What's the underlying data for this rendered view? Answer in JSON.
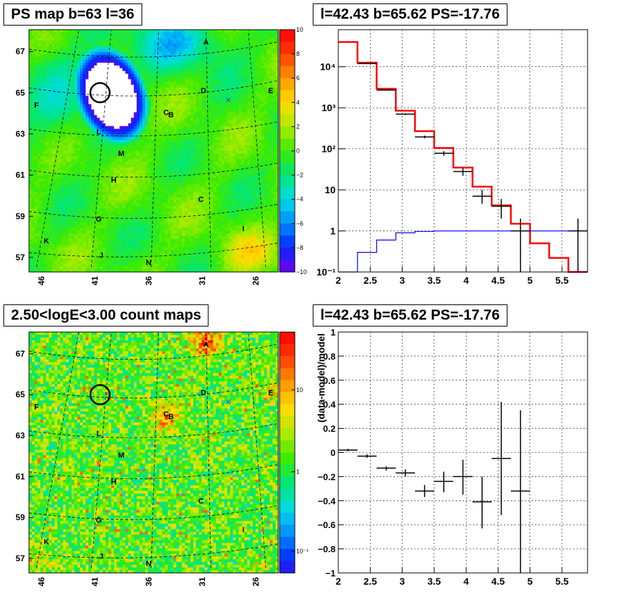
{
  "panels": {
    "ps_map": {
      "title": "PS map b=63 l=36",
      "y_ticks": [
        "57",
        "59",
        "61",
        "63",
        "65",
        "67"
      ],
      "x_ticks": [
        "46",
        "41",
        "36",
        "31",
        "26"
      ],
      "colorbar_ticks": [
        "10",
        "8",
        "6",
        "4",
        "2",
        "0",
        "−2",
        "−4",
        "−6",
        "−8",
        "−10"
      ],
      "sources": [
        "A",
        "B",
        "C",
        "D",
        "E",
        "F",
        "G",
        "H",
        "I",
        "J",
        "K",
        "L",
        "M",
        "N"
      ]
    },
    "spectrum": {
      "title": "l=42.43 b=65.62 PS=-17.76",
      "x_ticks": [
        "2",
        "2.5",
        "3",
        "3.5",
        "4",
        "4.5",
        "5",
        "5.5"
      ],
      "y_ticks": [
        "10⁻¹",
        "1",
        "10",
        "10²",
        "10³",
        "10⁴"
      ]
    },
    "count_map": {
      "title": "2.50<logE<3.00 count maps",
      "y_ticks": [
        "57",
        "59",
        "61",
        "63",
        "65",
        "67"
      ],
      "x_ticks": [
        "46",
        "41",
        "36",
        "31",
        "26"
      ],
      "colorbar_ticks": [
        "10",
        "1",
        "10⁻¹"
      ],
      "sources": [
        "A",
        "B",
        "C",
        "D",
        "E",
        "F",
        "G",
        "H",
        "I",
        "J",
        "K",
        "L",
        "M",
        "N"
      ]
    },
    "residual": {
      "title": "l=42.43 b=65.62 PS=-17.76",
      "ylabel": "(data-model)/model",
      "x_ticks": [
        "2",
        "2.5",
        "3",
        "3.5",
        "4",
        "4.5",
        "5",
        "5.5"
      ],
      "y_ticks": [
        "−1",
        "−0.8",
        "−0.6",
        "−0.4",
        "−0.2",
        "0",
        "0.2",
        "0.4",
        "0.6",
        "0.8",
        "1"
      ]
    }
  },
  "colors": {
    "model": "#ff0000",
    "background_model": "#0000ff",
    "data": "#000000",
    "grid": "#000000"
  },
  "chart_data": [
    {
      "type": "heatmap",
      "title": "PS map b=63 l=36",
      "ylim": [
        56.6,
        68.2
      ],
      "colorbar_range": [
        -10,
        10
      ],
      "sources": [
        {
          "label": "A",
          "l": 31.0,
          "b": 67.5
        },
        {
          "label": "B",
          "l": 34.3,
          "b": 64.4
        },
        {
          "label": "C",
          "l": 34.6,
          "b": 64.5
        },
        {
          "label": "C",
          "l": 30.8,
          "b": 60.0
        },
        {
          "label": "D",
          "l": 30.6,
          "b": 65.3
        },
        {
          "label": "E",
          "l": 25.7,
          "b": 65.2
        },
        {
          "label": "F",
          "l": 46.3,
          "b": 64.7
        },
        {
          "label": "G",
          "l": 40.5,
          "b": 59.3
        },
        {
          "label": "H",
          "l": 39.8,
          "b": 60.9
        },
        {
          "label": "I",
          "l": 28.0,
          "b": 58.8
        },
        {
          "label": "J",
          "l": 40.3,
          "b": 57.2
        },
        {
          "label": "K",
          "l": 45.3,
          "b": 57.9
        },
        {
          "label": "L",
          "l": 40.7,
          "b": 63.3
        },
        {
          "label": "M",
          "l": 39.3,
          "b": 62.2
        },
        {
          "label": "N",
          "l": 36.4,
          "b": 56.9
        }
      ],
      "circle": {
        "l": 42.43,
        "b": 65.62
      }
    },
    {
      "type": "line",
      "title": "l=42.43 b=65.62 PS=-17.76",
      "xlim": [
        2,
        5.9
      ],
      "ylim": [
        0.1,
        80000
      ],
      "yscale": "log",
      "series": [
        {
          "role": "model",
          "edges": [
            2.0,
            2.3,
            2.6,
            2.9,
            3.2,
            3.5,
            3.8,
            4.1,
            4.4,
            4.7,
            5.0,
            5.3,
            5.6,
            5.9
          ],
          "values": [
            40000,
            12500,
            2900,
            850,
            270,
            105,
            35,
            12,
            4.2,
            1.5,
            0.5,
            0.22,
            0.08
          ]
        },
        {
          "role": "background",
          "edges": [
            2.0,
            2.3,
            2.6,
            2.9,
            3.2,
            3.5,
            3.8,
            4.1,
            4.4,
            4.7,
            5.0,
            5.3,
            5.6,
            5.9
          ],
          "values": [
            0.05,
            0.3,
            0.6,
            0.9,
            0.97,
            1.0,
            1.0,
            1.0,
            1.0,
            1.0,
            1.0,
            1.0,
            1.0
          ]
        },
        {
          "role": "data",
          "points": [
            {
              "x": 2.45,
              "y": 12000,
              "xerr": 0.15,
              "ylo": 11700,
              "yhi": 12300
            },
            {
              "x": 2.75,
              "y": 2700,
              "xerr": 0.15,
              "ylo": 2600,
              "yhi": 2800
            },
            {
              "x": 3.05,
              "y": 700,
              "xerr": 0.15,
              "ylo": 670,
              "yhi": 730
            },
            {
              "x": 3.35,
              "y": 195,
              "xerr": 0.15,
              "ylo": 180,
              "yhi": 210
            },
            {
              "x": 3.65,
              "y": 78,
              "xerr": 0.15,
              "ylo": 68,
              "yhi": 88
            },
            {
              "x": 3.95,
              "y": 28,
              "xerr": 0.15,
              "ylo": 22,
              "yhi": 34
            },
            {
              "x": 4.25,
              "y": 7,
              "xerr": 0.15,
              "ylo": 4.6,
              "yhi": 10
            },
            {
              "x": 4.55,
              "y": 4,
              "xerr": 0.15,
              "ylo": 2.0,
              "yhi": 6
            },
            {
              "x": 4.85,
              "y": 1,
              "xerr": 0.15,
              "ylo": 0.1,
              "yhi": 2
            },
            {
              "x": 5.75,
              "y": 1,
              "xerr": 0.15,
              "ylo": 0.1,
              "yhi": 2
            }
          ]
        }
      ]
    },
    {
      "type": "heatmap",
      "title": "2.50<logE<3.00 count maps",
      "ylim": [
        56.6,
        68.2
      ],
      "colorbar_scale": "log",
      "sources": [
        {
          "label": "A",
          "l": 31.0,
          "b": 67.5
        },
        {
          "label": "B",
          "l": 34.3,
          "b": 64.4
        },
        {
          "label": "C",
          "l": 34.6,
          "b": 64.5
        },
        {
          "label": "C",
          "l": 30.8,
          "b": 60.0
        },
        {
          "label": "D",
          "l": 30.6,
          "b": 65.3
        },
        {
          "label": "E",
          "l": 25.7,
          "b": 65.2
        },
        {
          "label": "F",
          "l": 46.3,
          "b": 64.7
        },
        {
          "label": "G",
          "l": 40.5,
          "b": 59.3
        },
        {
          "label": "H",
          "l": 39.8,
          "b": 60.9
        },
        {
          "label": "I",
          "l": 28.0,
          "b": 58.8
        },
        {
          "label": "J",
          "l": 40.3,
          "b": 57.2
        },
        {
          "label": "K",
          "l": 45.3,
          "b": 57.9
        },
        {
          "label": "L",
          "l": 40.7,
          "b": 63.3
        },
        {
          "label": "M",
          "l": 39.3,
          "b": 62.2
        },
        {
          "label": "N",
          "l": 36.4,
          "b": 56.9
        }
      ],
      "circle": {
        "l": 42.43,
        "b": 65.62
      }
    },
    {
      "type": "scatter",
      "title": "l=42.43 b=65.62 PS=-17.76",
      "ylabel": "(data-model)/model",
      "xlim": [
        2,
        5.9
      ],
      "ylim": [
        -1,
        1
      ],
      "points": [
        {
          "x": 2.15,
          "y": 0.02,
          "xerr": 0.15,
          "ylo": 0.01,
          "yhi": 0.03
        },
        {
          "x": 2.45,
          "y": -0.03,
          "xerr": 0.15,
          "ylo": -0.045,
          "yhi": -0.015
        },
        {
          "x": 2.75,
          "y": -0.13,
          "xerr": 0.15,
          "ylo": -0.15,
          "yhi": -0.115
        },
        {
          "x": 3.05,
          "y": -0.17,
          "xerr": 0.15,
          "ylo": -0.2,
          "yhi": -0.14
        },
        {
          "x": 3.35,
          "y": -0.32,
          "xerr": 0.15,
          "ylo": -0.37,
          "yhi": -0.27
        },
        {
          "x": 3.65,
          "y": -0.24,
          "xerr": 0.15,
          "ylo": -0.33,
          "yhi": -0.16
        },
        {
          "x": 3.95,
          "y": -0.2,
          "xerr": 0.15,
          "ylo": -0.35,
          "yhi": -0.06
        },
        {
          "x": 4.25,
          "y": -0.41,
          "xerr": 0.15,
          "ylo": -0.63,
          "yhi": -0.2
        },
        {
          "x": 4.55,
          "y": -0.05,
          "xerr": 0.15,
          "ylo": -0.52,
          "yhi": 0.42
        },
        {
          "x": 4.85,
          "y": -0.32,
          "xerr": 0.15,
          "ylo": -1.0,
          "yhi": 0.35
        }
      ]
    }
  ]
}
